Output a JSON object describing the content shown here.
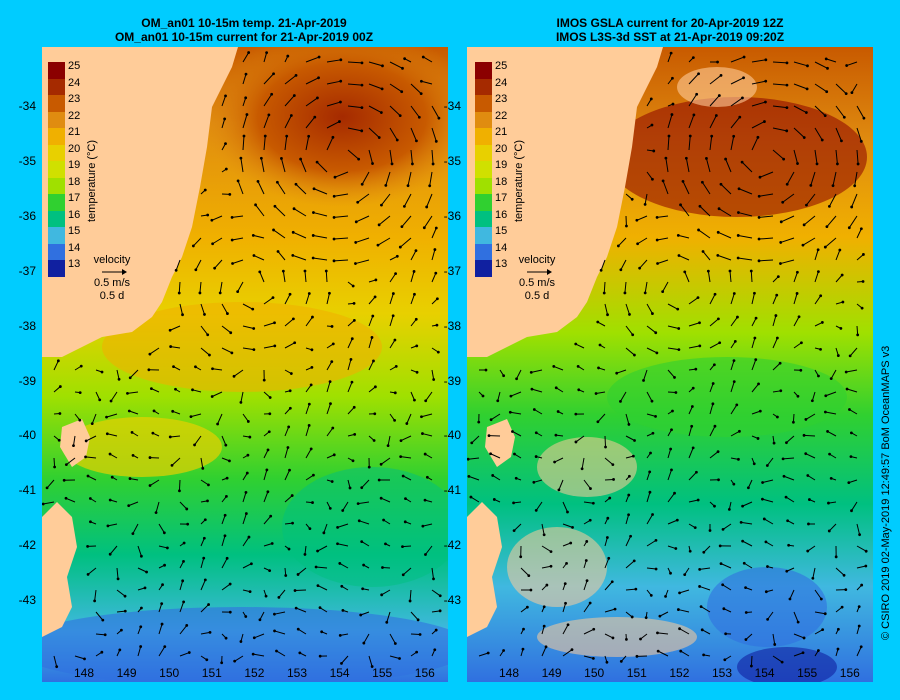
{
  "left_panel": {
    "title_line1": "OM_an01 10-15m temp. 21-Apr-2019",
    "title_line2": "OM_an01 10-15m current for 21-Apr-2019 00Z"
  },
  "right_panel": {
    "title_line1": "IMOS GSLA current for 20-Apr-2019 12Z",
    "title_line2": "IMOS L3S-3d SST at 21-Apr-2019 09:20Z"
  },
  "y_ticks": [
    "-34",
    "-35",
    "-36",
    "-37",
    "-38",
    "-39",
    "-40",
    "-41",
    "-42",
    "-43"
  ],
  "x_ticks": [
    "148",
    "149",
    "150",
    "151",
    "152",
    "153",
    "154",
    "155",
    "156"
  ],
  "legend": {
    "title": "temperature (°C)",
    "levels": [
      "25",
      "24",
      "23",
      "22",
      "21",
      "20",
      "19",
      "18",
      "17",
      "16",
      "15",
      "14",
      "13"
    ],
    "colors": [
      "#8b0000",
      "#a52a00",
      "#c85a00",
      "#e08c10",
      "#f0b000",
      "#e8d000",
      "#d0e000",
      "#a0e000",
      "#30d030",
      "#00c080",
      "#40b8e0",
      "#3070e0",
      "#1020a0"
    ]
  },
  "velocity_key": {
    "label": "velocity",
    "speed": "0.5 m/s",
    "time": "0.5 d"
  },
  "credit": "© CSIRO 2019  02-May-2019 12:49:57 BoM OceanMAPS v3",
  "colors": {
    "background": "#00ccff",
    "land": "#ffcc99",
    "arrow": "#000000"
  }
}
